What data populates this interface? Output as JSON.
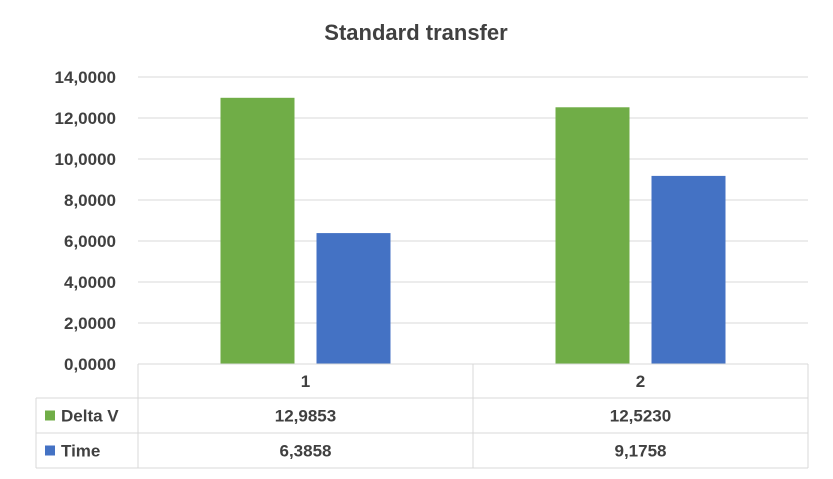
{
  "chart_data": {
    "type": "bar",
    "title": "Standard transfer",
    "categories": [
      "1",
      "2"
    ],
    "series": [
      {
        "name": "Delta V",
        "values": [
          12.9853,
          12.523
        ],
        "labels": [
          "12,9853",
          "12,5230"
        ],
        "color": "#70ad47"
      },
      {
        "name": "Time",
        "values": [
          6.3858,
          9.1758
        ],
        "labels": [
          "6,3858",
          "9,1758"
        ],
        "color": "#4472c4"
      }
    ],
    "ylim": [
      0,
      14
    ],
    "yticks": [
      0,
      2,
      4,
      6,
      8,
      10,
      12,
      14
    ],
    "ytick_labels": [
      "0,0000",
      "2,0000",
      "4,0000",
      "6,0000",
      "8,0000",
      "10,0000",
      "12,0000",
      "14,0000"
    ],
    "grid": true,
    "legend": "data-table"
  }
}
